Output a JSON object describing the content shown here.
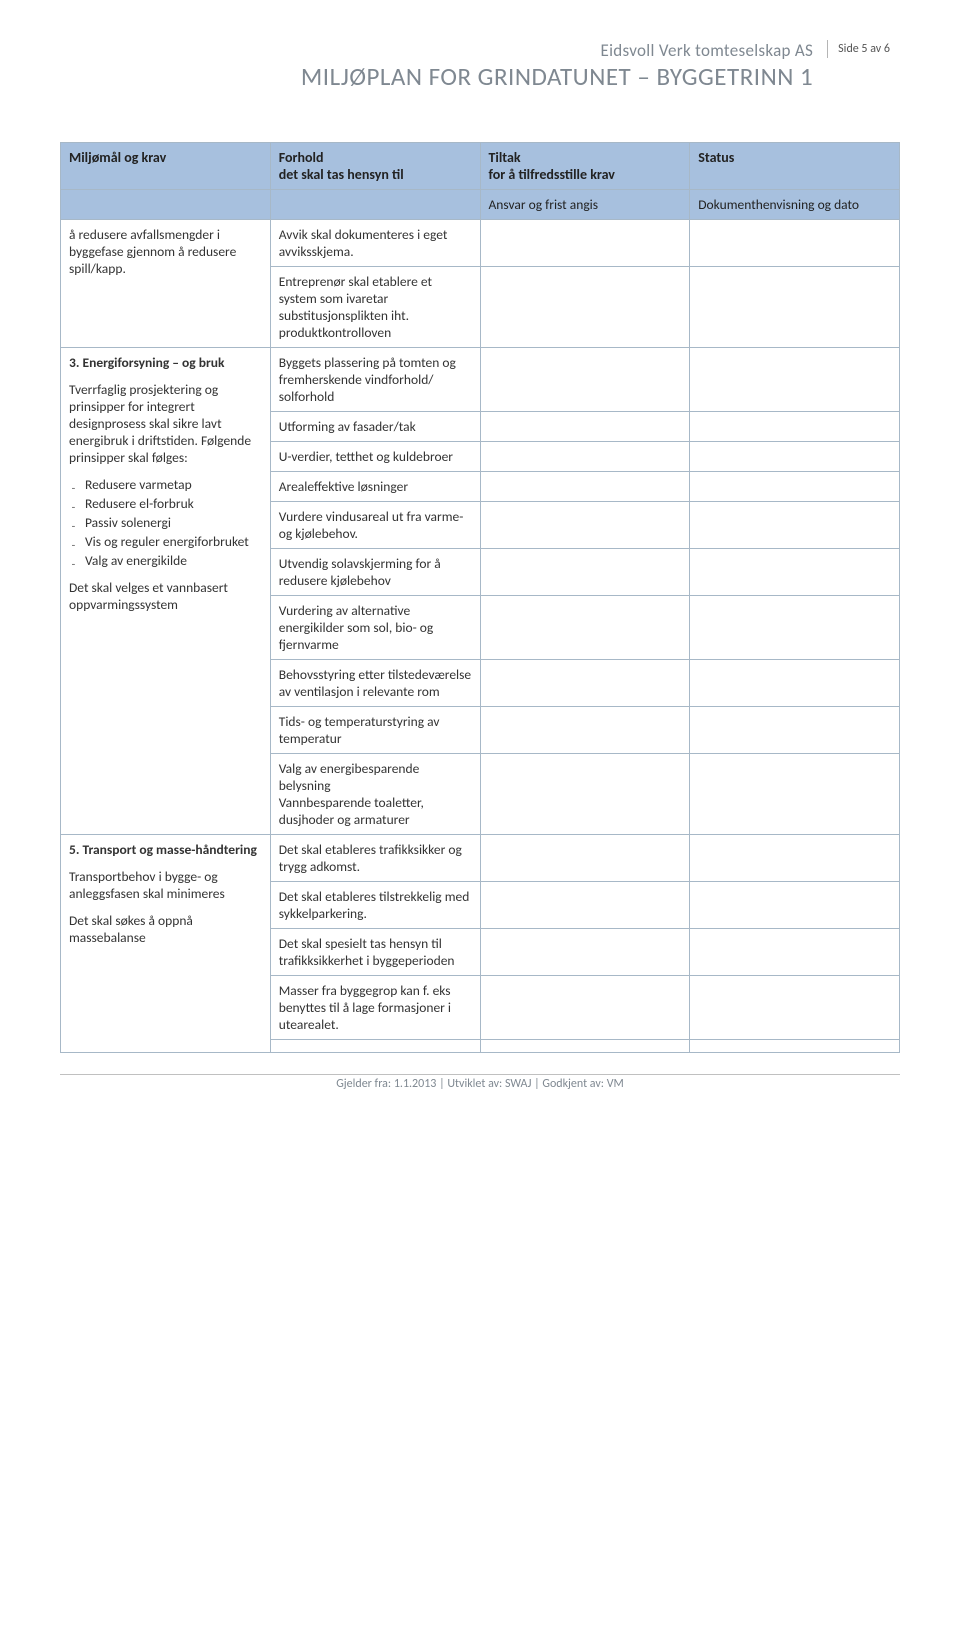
{
  "header": {
    "company": "Eidsvoll Verk tomteselskap AS",
    "title": "MILJØPLAN FOR GRINDATUNET – BYGGETRINN 1",
    "page_tag": "Side 5 av 6"
  },
  "table": {
    "head": {
      "c1": "Miljømål og krav",
      "c2": "Forhold\ndet skal tas hensyn til",
      "c3": "Tiltak\nfor å tilfredsstille krav",
      "c4": "Status",
      "sub_c3": "Ansvar og frist angis",
      "sub_c4": "Dokumenthenvisning og dato"
    },
    "section1": {
      "left": "å redusere avfallsmengder i byggefase gjennom å redusere spill/kapp.",
      "r1": "Avvik skal dokumenteres i eget avviksskjema.",
      "r2": "Entreprenør skal etablere et system som ivaretar substitusjonsplikten iht. produktkontrolloven"
    },
    "section2": {
      "title": "3. Energiforsyning – og bruk",
      "p1": "Tverrfaglig prosjektering og prinsipper for integrert designprosess skal sikre lavt energibruk i driftstiden. Følgende prinsipper skal følges:",
      "bullets": [
        "Redusere varmetap",
        "Redusere el-forbruk",
        "Passiv solenergi",
        "Vis og reguler energiforbruket",
        "Valg av energikilde"
      ],
      "p2": "Det skal velges et vannbasert oppvarmingssystem",
      "rows": [
        "Byggets plassering på tomten og fremherskende vindforhold/ solforhold",
        "Utforming av fasader/tak",
        "U-verdier, tetthet og kuldebroer",
        "Arealeffektive løsninger",
        "Vurdere vindusareal ut fra varme- og kjølebehov.",
        "Utvendig solavskjerming for å redusere kjølebehov",
        "Vurdering av alternative energikilder som sol, bio- og fjernvarme",
        "Behovsstyring etter tilstedeværelse av ventilasjon i relevante rom",
        "Tids- og temperaturstyring av temperatur",
        "Valg av energibesparende belysning\nVannbesparende toaletter, dusjhoder og armaturer"
      ]
    },
    "section3": {
      "title": "5. Transport og masse-håndtering",
      "p1": "Transportbehov i bygge- og anleggsfasen skal minimeres",
      "p2": "Det skal søkes å oppnå massebalanse",
      "rows": [
        "Det skal etableres trafikksikker og trygg adkomst.",
        "Det skal etableres tilstrekkelig med sykkelparkering.",
        "Det skal spesielt tas hensyn til trafikksikkerhet i byggeperioden",
        "Masser fra byggegrop kan f. eks benyttes til å lage formasjoner i utearealet."
      ]
    }
  },
  "footer": "Gjelder fra: 1.1.2013 | Utviklet av: SWAJ | Godkjent av: VM"
}
